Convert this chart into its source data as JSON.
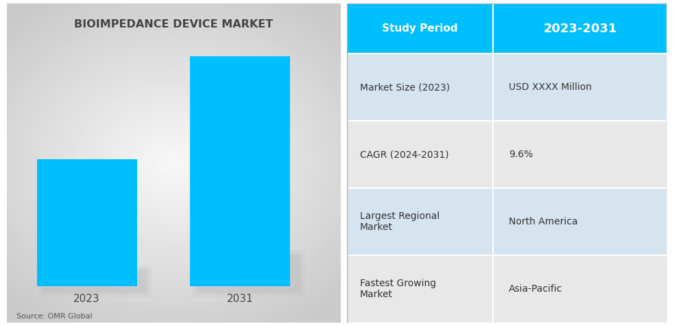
{
  "chart_title": "BIOIMPEDANCE DEVICE MARKET",
  "bar_years": [
    "2023",
    "2031"
  ],
  "bar_values": [
    0.55,
    1.0
  ],
  "bar_color": "#00BFFF",
  "source_text": "Source: OMR Global",
  "table_header_col1": "Study Period",
  "table_header_col2": "2023-2031",
  "table_header_bg": "#00BFFF",
  "table_header_text_color": "#FFFFFF",
  "table_rows": [
    [
      "Market Size (2023)",
      "USD XXXX Million"
    ],
    [
      "CAGR (2024-2031)",
      "9.6%"
    ],
    [
      "Largest Regional\nMarket",
      "North America"
    ],
    [
      "Fastest Growing\nMarket",
      "Asia-Pacific"
    ]
  ],
  "table_row_colors_col1": [
    "#d6e4f0",
    "#e8e8e8",
    "#d6e4f0",
    "#e8e8e8"
  ],
  "table_row_colors_col2": [
    "#d6e4f0",
    "#e8e8e8",
    "#d6e4f0",
    "#e8e8e8"
  ],
  "table_text_color": "#333333",
  "shadow_color": "#bbbbbb",
  "left_panel_border_color": "#cccccc"
}
